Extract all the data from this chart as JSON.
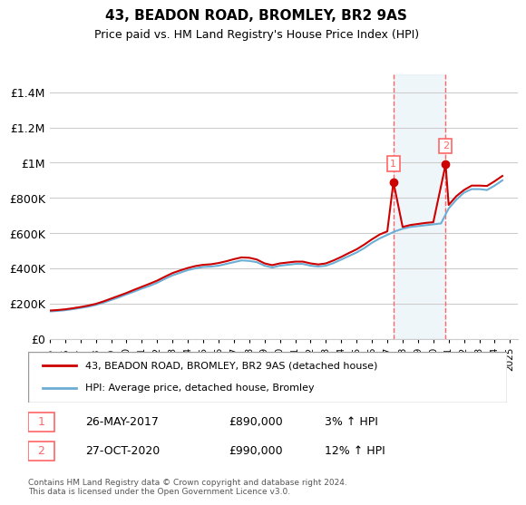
{
  "title": "43, BEADON ROAD, BROMLEY, BR2 9AS",
  "subtitle": "Price paid vs. HM Land Registry's House Price Index (HPI)",
  "ylabel_ticks": [
    "£0",
    "£200K",
    "£400K",
    "£600K",
    "£800K",
    "£1M",
    "£1.2M",
    "£1.4M"
  ],
  "ytick_values": [
    0,
    200000,
    400000,
    600000,
    800000,
    1000000,
    1200000,
    1400000
  ],
  "ylim": [
    0,
    1500000
  ],
  "xlim_start": 1995,
  "xlim_end": 2025.5,
  "hpi_color": "#6baed6",
  "price_color": "#cc0000",
  "dashed_color": "#ff6666",
  "background_color": "#ffffff",
  "grid_color": "#cccccc",
  "legend_label_1": "43, BEADON ROAD, BROMLEY, BR2 9AS (detached house)",
  "legend_label_2": "HPI: Average price, detached house, Bromley",
  "sale_1_date": "26-MAY-2017",
  "sale_1_price": "£890,000",
  "sale_1_pct": "3% ↑ HPI",
  "sale_2_date": "27-OCT-2020",
  "sale_2_price": "£990,000",
  "sale_2_pct": "12% ↑ HPI",
  "footnote": "Contains HM Land Registry data © Crown copyright and database right 2024.\nThis data is licensed under the Open Government Licence v3.0.",
  "sale_1_x": 2017.4,
  "sale_2_x": 2020.8,
  "hpi_x": [
    1995,
    1995.5,
    1996,
    1996.5,
    1997,
    1997.5,
    1998,
    1998.5,
    1999,
    1999.5,
    2000,
    2000.5,
    2001,
    2001.5,
    2002,
    2002.5,
    2003,
    2003.5,
    2004,
    2004.5,
    2005,
    2005.5,
    2006,
    2006.5,
    2007,
    2007.5,
    2008,
    2008.5,
    2009,
    2009.5,
    2010,
    2010.5,
    2011,
    2011.5,
    2012,
    2012.5,
    2013,
    2013.5,
    2014,
    2014.5,
    2015,
    2015.5,
    2016,
    2016.5,
    2017,
    2017.5,
    2018,
    2018.5,
    2019,
    2019.5,
    2020,
    2020.5,
    2021,
    2021.5,
    2022,
    2022.5,
    2023,
    2023.5,
    2024,
    2024.5
  ],
  "hpi_y": [
    155000,
    158000,
    162000,
    168000,
    175000,
    182000,
    192000,
    205000,
    220000,
    235000,
    252000,
    268000,
    285000,
    300000,
    318000,
    340000,
    360000,
    375000,
    390000,
    400000,
    408000,
    410000,
    415000,
    425000,
    435000,
    445000,
    442000,
    435000,
    415000,
    405000,
    415000,
    420000,
    425000,
    425000,
    415000,
    410000,
    415000,
    430000,
    450000,
    470000,
    490000,
    515000,
    545000,
    570000,
    590000,
    610000,
    625000,
    635000,
    640000,
    645000,
    650000,
    655000,
    740000,
    790000,
    830000,
    850000,
    850000,
    845000,
    870000,
    900000
  ],
  "price_x": [
    1995,
    1995.5,
    1996,
    1996.5,
    1997,
    1997.5,
    1998,
    1998.5,
    1999,
    1999.5,
    2000,
    2000.5,
    2001,
    2001.5,
    2002,
    2002.5,
    2003,
    2003.5,
    2004,
    2004.5,
    2005,
    2005.5,
    2006,
    2006.5,
    2007,
    2007.5,
    2008,
    2008.5,
    2009,
    2009.5,
    2010,
    2010.5,
    2011,
    2011.5,
    2012,
    2012.5,
    2013,
    2013.5,
    2014,
    2014.5,
    2015,
    2015.5,
    2016,
    2016.5,
    2017,
    2017.4,
    2018,
    2018.5,
    2019,
    2019.5,
    2020,
    2020.8,
    2021,
    2021.5,
    2022,
    2022.5,
    2023,
    2023.5,
    2024,
    2024.5
  ],
  "price_y": [
    160000,
    163000,
    167000,
    173000,
    180000,
    188000,
    198000,
    212000,
    228000,
    244000,
    260000,
    278000,
    295000,
    312000,
    330000,
    352000,
    373000,
    388000,
    402000,
    413000,
    420000,
    423000,
    430000,
    440000,
    452000,
    462000,
    460000,
    450000,
    428000,
    418000,
    428000,
    433000,
    438000,
    438000,
    428000,
    422000,
    428000,
    445000,
    465000,
    487000,
    508000,
    535000,
    565000,
    592000,
    610000,
    890000,
    635000,
    646000,
    652000,
    658000,
    662000,
    990000,
    760000,
    810000,
    845000,
    870000,
    870000,
    868000,
    895000,
    925000
  ]
}
